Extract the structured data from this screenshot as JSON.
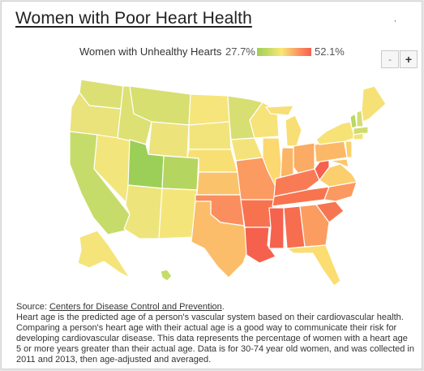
{
  "title": "Women with Poor Heart Health",
  "corner_mark": ",",
  "legend": {
    "title": "Women with Unhealthy Hearts",
    "min_label": "27.7%",
    "max_label": "52.1%",
    "colors": [
      "#9ccf58",
      "#f7e774",
      "#fb8c5e",
      "#f5614d"
    ]
  },
  "zoom": {
    "out_label": "-",
    "in_label": "+"
  },
  "footer": {
    "source_prefix": "Source: ",
    "source_link": "Centers for Disease Control and Prevention",
    "source_suffix": ".",
    "description": "Heart age is the predicted age of a person's vascular system based on their cardiovascular health. Comparing a person's heart age with their actual age is a good way to communicate their risk for developing cardiovascular disease. This data represents the percentage of women with a heart age 5 or more years greater than their actual age. Data is for 30-74 year old women, and was collected in 2011 and 2013, then age-adjusted and averaged."
  }
}
